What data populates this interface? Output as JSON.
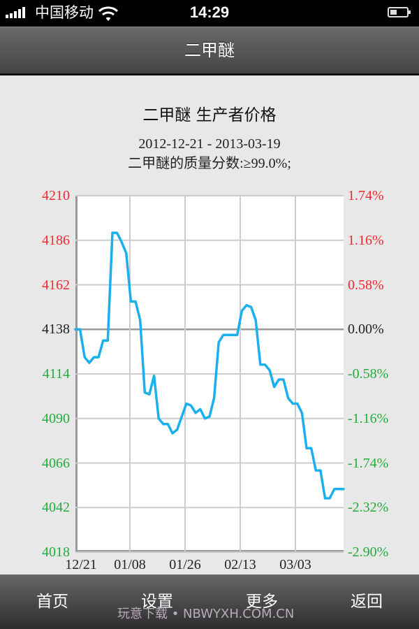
{
  "status_bar": {
    "carrier": "中国移动",
    "time": "14:29",
    "signal_icon": "signal-bars-icon",
    "wifi_icon": "wifi-icon",
    "battery_icon": "battery-icon"
  },
  "nav_bar": {
    "title": "二甲醚"
  },
  "chart": {
    "title": "二甲醚 生产者价格",
    "date_range": "2012-12-21 - 2013-03-19",
    "spec": "二甲醚的质量分数:≥99.0%;",
    "colors": {
      "line": "#1ab0f0",
      "up": "#f0282d",
      "down": "#1fae3c",
      "neutral": "#222222",
      "grid": "#cccccc",
      "baseline": "#999999"
    },
    "y_left_ticks": [
      "4210",
      "4186",
      "4162",
      "4138",
      "4114",
      "4090",
      "4066",
      "4042",
      "4018"
    ],
    "y_right_ticks": [
      "1.74%",
      "1.16%",
      "0.58%",
      "0.00%",
      "-0.58%",
      "-1.16%",
      "-1.74%",
      "-2.32%",
      "-2.90%"
    ],
    "x_ticks": [
      "12/21",
      "01/08",
      "01/26",
      "02/13",
      "03/03"
    ]
  },
  "chart_data": {
    "type": "line",
    "title": "二甲醚 生产者价格",
    "subtitle": "2012-12-21 - 2013-03-19; 二甲醚的质量分数:≥99.0%;",
    "xlabel": "",
    "ylabel": "",
    "x_tick_labels": [
      "12/21",
      "01/08",
      "01/26",
      "02/13",
      "03/03"
    ],
    "ylim": [
      4018,
      4210
    ],
    "y2lim": [
      -2.9,
      1.74
    ],
    "y_ticks": [
      4210,
      4186,
      4162,
      4138,
      4114,
      4090,
      4066,
      4042,
      4018
    ],
    "y2_ticks": [
      "1.74%",
      "1.16%",
      "0.58%",
      "0.00%",
      "-0.58%",
      "-1.16%",
      "-1.74%",
      "-2.32%",
      "-2.90%"
    ],
    "baseline": 4138,
    "grid": true,
    "legend": null,
    "series": [
      {
        "name": "二甲醚 生产者价格",
        "x": [
          "12/21",
          "12/23",
          "12/24",
          "12/26",
          "12/28",
          "01/02",
          "01/03",
          "01/05",
          "01/06",
          "01/07",
          "01/08",
          "01/09",
          "01/10",
          "01/11",
          "01/13",
          "01/14",
          "01/15",
          "01/16",
          "01/17",
          "01/18",
          "01/19",
          "01/20",
          "01/21",
          "01/22",
          "01/23",
          "01/24",
          "01/25",
          "01/26",
          "01/27",
          "01/28",
          "01/30",
          "01/31",
          "02/02",
          "02/03",
          "02/04",
          "02/12",
          "02/13",
          "02/14",
          "02/15",
          "02/17",
          "02/18",
          "02/19",
          "02/22",
          "02/23",
          "02/24",
          "02/26",
          "02/27",
          "03/02",
          "03/04",
          "03/07",
          "03/08",
          "03/09",
          "03/11",
          "03/12",
          "03/14",
          "03/15",
          "03/17",
          "03/18",
          "03/19"
        ],
        "values": [
          4138,
          4138,
          4123,
          4120,
          4123,
          4123,
          4132,
          4132,
          4190,
          4190,
          4185,
          4179,
          4153,
          4153,
          4143,
          4104,
          4103,
          4113,
          4090,
          4087,
          4087,
          4082,
          4084,
          4091,
          4098,
          4097,
          4093,
          4095,
          4090,
          4091,
          4101,
          4131,
          4135,
          4135,
          4135,
          4135,
          4148,
          4151,
          4150,
          4143,
          4119,
          4119,
          4116,
          4107,
          4111,
          4111,
          4101,
          4098,
          4098,
          4093,
          4074,
          4074,
          4062,
          4062,
          4047,
          4047,
          4052,
          4052,
          4052
        ]
      }
    ]
  },
  "tab_bar": {
    "tabs": [
      {
        "label": "首页"
      },
      {
        "label": "设置"
      },
      {
        "label": "更多"
      },
      {
        "label": "返回"
      }
    ]
  },
  "watermark": "玩意下载 • NBWYXH.COM.CN"
}
